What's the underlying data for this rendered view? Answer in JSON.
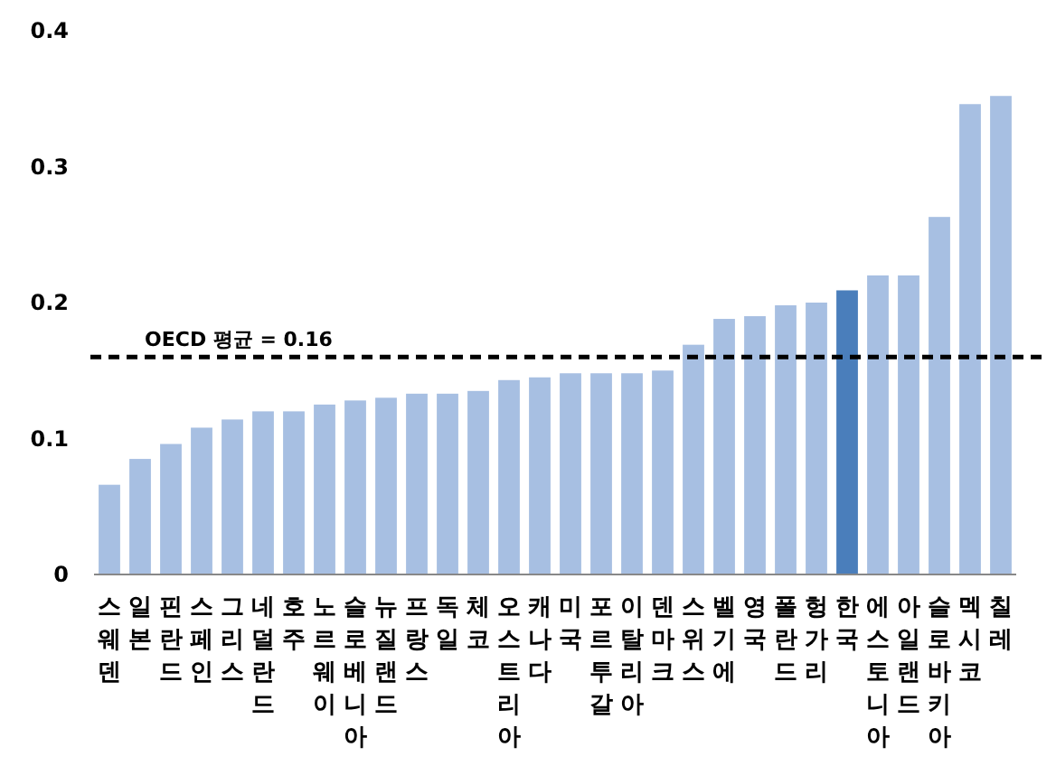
{
  "chart_data": {
    "type": "bar",
    "categories": [
      "스웨덴",
      "일본",
      "핀란드",
      "스페인",
      "그리스",
      "네덜란드",
      "호주",
      "노르웨이",
      "슬로베니아",
      "뉴질랜드",
      "프랑스",
      "독일",
      "체코",
      "오스트리아",
      "캐나다",
      "미국",
      "포르투갈",
      "이탈리아",
      "덴마크",
      "스위스",
      "벨기에",
      "영국",
      "폴란드",
      "헝가리",
      "한국",
      "에스토니아",
      "아일랜드",
      "슬로바키아",
      "멕시코",
      "칠레"
    ],
    "values": [
      0.066,
      0.085,
      0.096,
      0.108,
      0.114,
      0.12,
      0.12,
      0.125,
      0.128,
      0.13,
      0.133,
      0.133,
      0.135,
      0.143,
      0.145,
      0.148,
      0.148,
      0.148,
      0.15,
      0.169,
      0.188,
      0.19,
      0.198,
      0.2,
      0.209,
      0.22,
      0.22,
      0.263,
      0.346,
      0.352
    ],
    "colors": [
      "#a7bfe2",
      "#a7bfe2",
      "#a7bfe2",
      "#a7bfe2",
      "#a7bfe2",
      "#a7bfe2",
      "#a7bfe2",
      "#a7bfe2",
      "#a7bfe2",
      "#a7bfe2",
      "#a7bfe2",
      "#a7bfe2",
      "#a7bfe2",
      "#a7bfe2",
      "#a7bfe2",
      "#a7bfe2",
      "#a7bfe2",
      "#a7bfe2",
      "#a7bfe2",
      "#a7bfe2",
      "#a7bfe2",
      "#a7bfe2",
      "#a7bfe2",
      "#a7bfe2",
      "#4a7ebb",
      "#a7bfe2",
      "#a7bfe2",
      "#a7bfe2",
      "#a7bfe2",
      "#a7bfe2"
    ],
    "ylim": [
      0,
      0.4
    ],
    "yticks": [
      0,
      0.1,
      0.2,
      0.3,
      0.4
    ],
    "grid": false,
    "ref_lines": [
      {
        "axis": "y",
        "value": 0.16,
        "label": "OECD 평균 = 0.16",
        "color": "#000000",
        "line_style": "dashed"
      }
    ]
  }
}
